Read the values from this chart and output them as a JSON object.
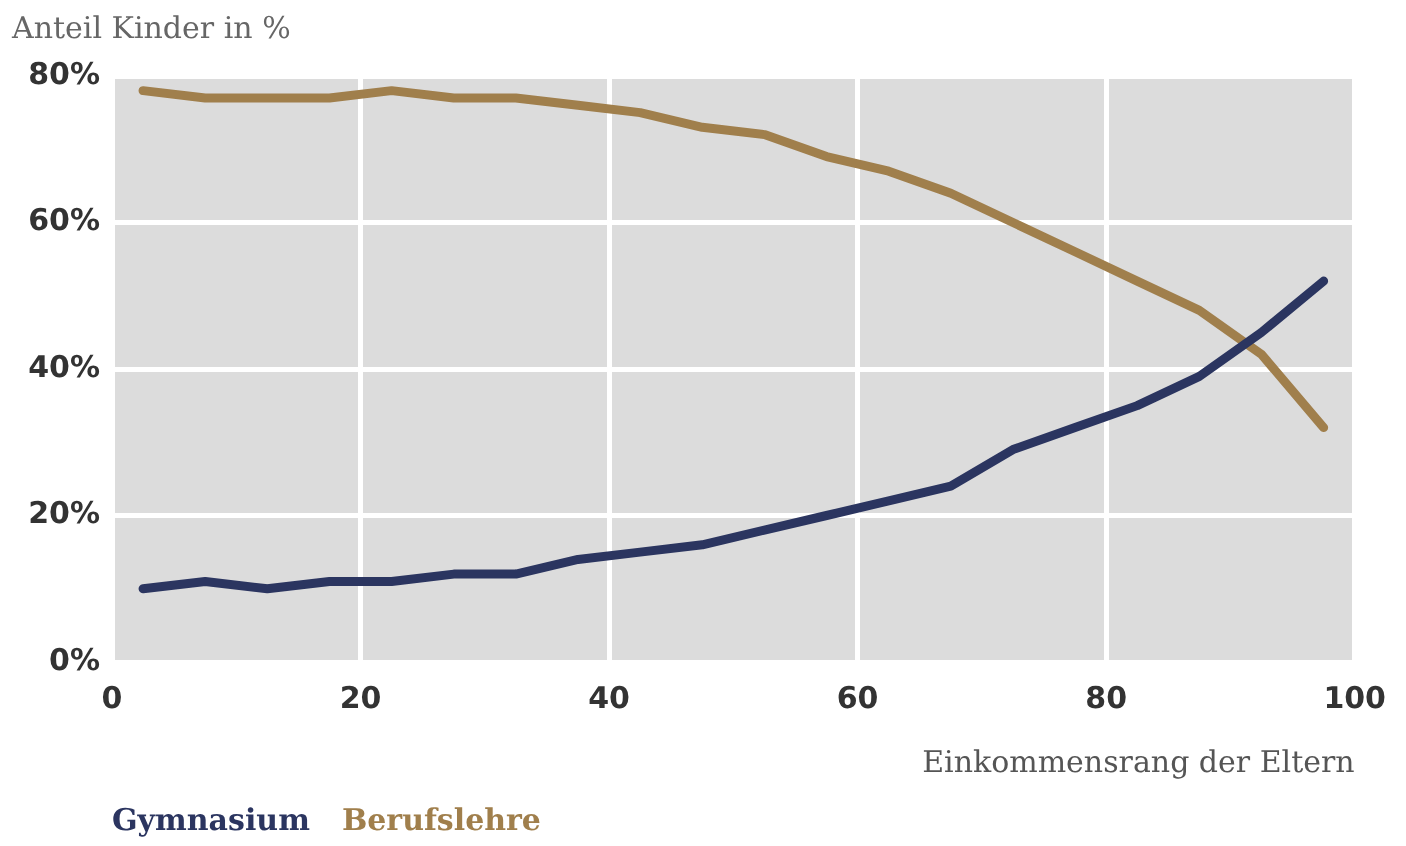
{
  "chart_data": {
    "type": "line",
    "title": "Anteil Kinder in %",
    "xlabel": "Einkommensrang der Eltern",
    "x": [
      2.5,
      7.5,
      12.5,
      17.5,
      22.5,
      27.5,
      32.5,
      37.5,
      42.5,
      47.5,
      52.5,
      57.5,
      62.5,
      67.5,
      72.5,
      77.5,
      82.5,
      87.5,
      92.5,
      97.5
    ],
    "series": [
      {
        "name": "Gymnasium",
        "color": "#2b3560",
        "values": [
          10,
          11,
          10,
          11,
          11,
          12,
          12,
          14,
          15,
          16,
          18,
          20,
          22,
          24,
          29,
          32,
          35,
          39,
          45,
          52
        ]
      },
      {
        "name": "Berufslehre",
        "color": "#a07f4c",
        "values": [
          78,
          77,
          77,
          77,
          78,
          77,
          77,
          76,
          75,
          73,
          72,
          69,
          67,
          64,
          60,
          56,
          52,
          48,
          42,
          32
        ]
      }
    ],
    "xlim": [
      0,
      100
    ],
    "xticks": [
      0,
      20,
      40,
      60,
      80,
      100
    ],
    "ylim": [
      0,
      80
    ],
    "yticks": [
      {
        "value": 0,
        "label": "0%"
      },
      {
        "value": 20,
        "label": "20%"
      },
      {
        "value": 40,
        "label": "40%"
      },
      {
        "value": 60,
        "label": "60%"
      },
      {
        "value": 80,
        "label": "80%"
      }
    ],
    "grid": true,
    "legend": "bottom left",
    "marker": "none",
    "line_style": "solid"
  }
}
